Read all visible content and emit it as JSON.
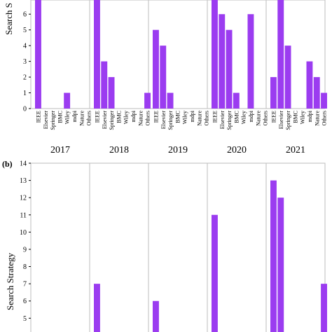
{
  "colors": {
    "bar": "#9b3cf0",
    "grid": "#bdbdbd",
    "axis": "#000000"
  },
  "chart_data": [
    {
      "type": "bar",
      "panel_label": "",
      "ylabel": "Search S",
      "ylim": [
        0,
        6.9
      ],
      "yticks": [
        0,
        1,
        2,
        3,
        4,
        5,
        6
      ],
      "grid": true,
      "groups": [
        "2017",
        "2018",
        "2019",
        "2020",
        "2021"
      ],
      "categories": [
        "IEEE",
        "Elsevier",
        "Springer",
        "BMC",
        "Wiley",
        "mdpi",
        "Nature",
        "Others"
      ],
      "values": [
        [
          7,
          0,
          0,
          0,
          1,
          0,
          0,
          0
        ],
        [
          7,
          3,
          2,
          0,
          0,
          0,
          0,
          1
        ],
        [
          5,
          4,
          1,
          0,
          0,
          0,
          0,
          0
        ],
        [
          7,
          6,
          5,
          1,
          0,
          6,
          0,
          0
        ],
        [
          2,
          7,
          4,
          0,
          0,
          3,
          2,
          1
        ]
      ]
    },
    {
      "type": "bar",
      "panel_label": "(b)",
      "ylabel": "Search Strategy",
      "ylim": [
        4.2,
        14
      ],
      "yticks": [
        5,
        6,
        7,
        8,
        9,
        10,
        11,
        12,
        13,
        14
      ],
      "grid": true,
      "groups_count": 5,
      "categories_per_group": 8,
      "values": [
        [
          0,
          0,
          0,
          0,
          0,
          0,
          0,
          0
        ],
        [
          7,
          0,
          0,
          0,
          0,
          0,
          0,
          0
        ],
        [
          6,
          0,
          0,
          0,
          0,
          0,
          0,
          0
        ],
        [
          11,
          0,
          0,
          0,
          0,
          0,
          0,
          0
        ],
        [
          13,
          12,
          0,
          0,
          0,
          0,
          0,
          7
        ]
      ]
    }
  ]
}
